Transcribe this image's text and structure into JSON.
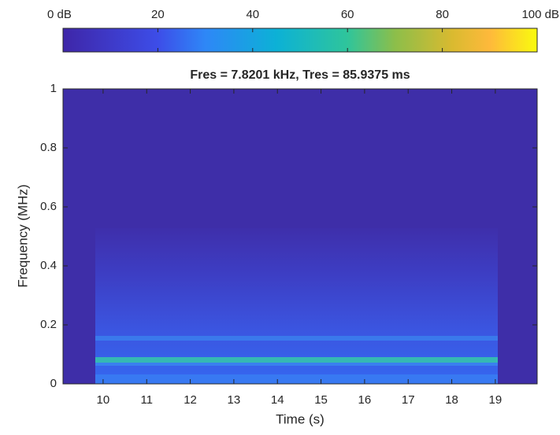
{
  "chart_data": {
    "type": "spectrogram",
    "title": "Fres = 7.8201 kHz, Tres = 85.9375 ms",
    "x_label": "Time (s)",
    "y_label": "Frequency (MHz)",
    "xlim": [
      9.08,
      19.96
    ],
    "xticks": [
      10,
      11,
      12,
      13,
      14,
      15,
      16,
      17,
      18,
      19
    ],
    "ylim": [
      0,
      1
    ],
    "yticks": [
      0,
      0.2,
      0.4,
      0.6,
      0.8,
      1
    ],
    "colorbar": {
      "lim": [
        0,
        100
      ],
      "ticks": [
        {
          "value": 0,
          "label": "0 dB"
        },
        20,
        40,
        60,
        80,
        {
          "value": 100,
          "label": "100 dB"
        }
      ]
    }
  }
}
